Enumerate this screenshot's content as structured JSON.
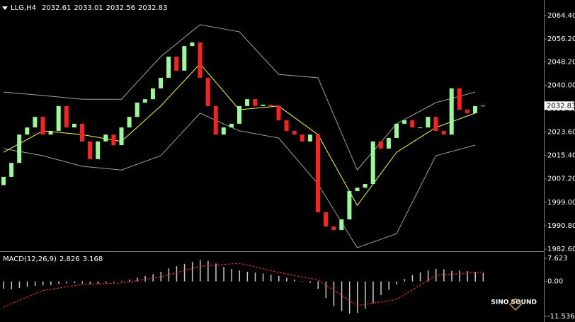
{
  "header": {
    "symbol": "LLG,H4",
    "ohlc": [
      2032.61,
      2033.01,
      2032.56,
      2032.83
    ],
    "watermark": "SINO SOUND"
  },
  "chart_data": [
    {
      "type": "candlestick",
      "current_price": 2032.83,
      "up_color": "#98fb98",
      "down_color": "#ff2020",
      "open": [
        2005.0,
        2007.9,
        2012.8,
        2022.7,
        2025.2,
        2028.9,
        2022.7,
        2024.0,
        2032.7,
        2025.2,
        2026.5,
        2020.3,
        2014.1,
        2020.3,
        2022.7,
        2019.0,
        2025.2,
        2028.9,
        2033.9,
        2035.1,
        2038.9,
        2042.6,
        2050.0,
        2045.1,
        2053.7,
        2055.0,
        2042.6,
        2032.7,
        2022.7,
        2025.2,
        2026.5,
        2032.7,
        2035.1,
        2032.7,
        2033.2,
        2032.7,
        2027.7,
        2024.0,
        2022.7,
        2020.3,
        2022.7,
        1995.5,
        1990.5,
        1989.3,
        1993.0,
        2002.9,
        2004.1,
        2005.4,
        2020.3,
        2017.8,
        2021.5,
        2026.5,
        2027.7,
        2025.2,
        2025.2,
        2028.9,
        2024.0,
        2022.7,
        2038.9,
        2031.4,
        2030.2,
        2032.7
      ],
      "close": [
        2007.9,
        2012.8,
        2022.7,
        2025.2,
        2028.9,
        2022.7,
        2024.0,
        2032.7,
        2025.2,
        2026.5,
        2020.3,
        2014.1,
        2020.3,
        2022.7,
        2019.0,
        2025.2,
        2028.9,
        2033.9,
        2035.1,
        2038.9,
        2042.6,
        2050.0,
        2045.1,
        2053.7,
        2055.0,
        2042.6,
        2032.7,
        2022.7,
        2025.2,
        2026.5,
        2032.7,
        2035.1,
        2032.7,
        2033.2,
        2032.7,
        2027.7,
        2024.0,
        2022.7,
        2020.3,
        2022.7,
        1995.5,
        1990.5,
        1989.3,
        1993.0,
        2002.9,
        2004.1,
        2005.4,
        2020.3,
        2017.8,
        2021.5,
        2026.5,
        2027.7,
        2025.2,
        2025.2,
        2028.9,
        2024.0,
        2022.7,
        2038.9,
        2031.4,
        2030.2,
        2032.7,
        2032.83
      ],
      "lines": [
        {
          "color": "#a0a0a0",
          "x": [
            0,
            5,
            10,
            15,
            20,
            25,
            30,
            35,
            40,
            45,
            50,
            55,
            60
          ],
          "values": [
            2037.6,
            2036.4,
            2035.1,
            2035.1,
            2050.0,
            2061.2,
            2058.7,
            2043.8,
            2042.6,
            2010.3,
            2026.5,
            2033.9,
            2037.6
          ]
        },
        {
          "color": "#a0a0a0",
          "x": [
            0,
            5,
            10,
            15,
            20,
            25,
            30,
            35,
            40,
            45,
            50,
            55,
            60
          ],
          "values": [
            2017.8,
            2015.3,
            2011.6,
            2010.3,
            2015.3,
            2030.2,
            2024.0,
            2021.5,
            2005.4,
            1983.1,
            1988.0,
            2015.3,
            2019.0
          ]
        },
        {
          "color": "#ffff00",
          "x": [
            0,
            5,
            10,
            15,
            20,
            25,
            30,
            35,
            40,
            45,
            50,
            55,
            60
          ],
          "values": [
            2016.5,
            2024.0,
            2022.7,
            2020.3,
            2032.7,
            2047.5,
            2031.4,
            2032.7,
            2022.7,
            1997.9,
            2016.5,
            2025.2,
            2030.2
          ]
        }
      ],
      "ylim": [
        1982.1,
        2068.6
      ],
      "yticks": [
        {
          "value": 2064.4,
          "label": "2064.40"
        },
        {
          "value": 2056.2,
          "label": "2056.20"
        },
        {
          "value": 2048.2,
          "label": "2048.20"
        },
        {
          "value": 2040,
          "label": "2040.00"
        },
        {
          "value": 2031.8,
          "label": "2031.80"
        },
        {
          "value": 2023.6,
          "label": "2023.60"
        },
        {
          "value": 2015.4,
          "label": "2015.40"
        },
        {
          "value": 2007.2,
          "label": "2007.20"
        },
        {
          "value": 1999,
          "label": "1999.00"
        },
        {
          "value": 1990.8,
          "label": "1990.80"
        },
        {
          "value": 1982.6,
          "label": "1982.60"
        }
      ]
    },
    {
      "type": "macd",
      "title": "MACD(12,26,9)",
      "title_values": [
        2.826,
        3.168
      ],
      "color": "#c8c8c8",
      "values": [
        -2.4,
        -2.6,
        -2.2,
        -1.8,
        -1.5,
        -1.3,
        -1.2,
        -0.8,
        -0.7,
        -0.6,
        -0.7,
        -0.9,
        -0.8,
        -0.5,
        -0.3,
        0.2,
        0.6,
        1.2,
        1.8,
        2.4,
        3.2,
        4.3,
        5.0,
        5.8,
        6.5,
        7.1,
        6.8,
        5.9,
        4.8,
        4.1,
        3.6,
        3.2,
        2.9,
        2.6,
        2.2,
        1.8,
        1.2,
        0.6,
        0.1,
        -0.5,
        -2.5,
        -5.5,
        -8.2,
        -9.8,
        -10.7,
        -10.4,
        -9.1,
        -7.2,
        -4.5,
        -2.8,
        -1.0,
        0.8,
        2.1,
        3.0,
        3.6,
        4.2,
        4.0,
        3.5,
        3.6,
        3.4,
        3.1,
        2.826
      ],
      "signal": {
        "color": "#ff3030",
        "x": [
          0,
          5,
          10,
          15,
          20,
          25,
          30,
          35,
          40,
          45,
          50,
          55,
          61
        ],
        "values": [
          -8.5,
          -3.0,
          -1.0,
          -0.5,
          1.5,
          5.0,
          6.0,
          3.0,
          0.5,
          -8.0,
          -6.0,
          2.0,
          3.168
        ]
      },
      "ylim": [
        -12.73,
        9.29
      ],
      "yticks": [
        7.623,
        {
          "value": 0,
          "label": "0.00"
        },
        -11.536
      ]
    }
  ]
}
